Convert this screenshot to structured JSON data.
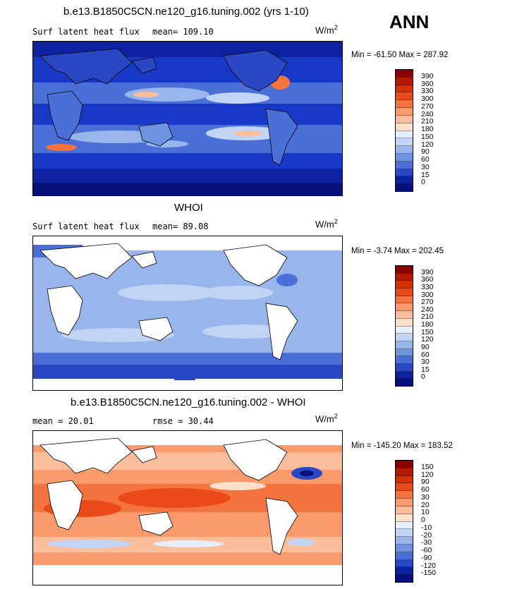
{
  "season": "ANN",
  "panels": [
    {
      "title": "b.e13.B1850C5CN.ne120_g16.tuning.002 (yrs 1-10)",
      "left_label": "Surf latent heat flux",
      "mid_label": "mean= 109.10",
      "units_base": "W/m",
      "units_exp": "2",
      "minmax": "Min = -61.50 Max = 287.92",
      "colorbar_labels": [
        "390",
        "360",
        "330",
        "300",
        "270",
        "240",
        "210",
        "180",
        "150",
        "120",
        "90",
        "60",
        "30",
        "15",
        "0"
      ],
      "colorbar_colors": [
        "#8b0000",
        "#b51a00",
        "#d43000",
        "#ea4a1a",
        "#f4743f",
        "#f89a6c",
        "#fbbe9c",
        "#fde0cc",
        "#e6eefb",
        "#c2d4f5",
        "#98b6ec",
        "#6e93e0",
        "#4a6fd6",
        "#2a48c4",
        "#0d22a0",
        "#05107a"
      ]
    },
    {
      "title": "WHOI",
      "left_label": "Surf latent heat flux",
      "mid_label": "mean=  89.08",
      "units_base": "W/m",
      "units_exp": "2",
      "minmax": "Min =  -3.74 Max = 202.45",
      "colorbar_labels": [
        "390",
        "360",
        "330",
        "300",
        "270",
        "240",
        "210",
        "180",
        "150",
        "120",
        "90",
        "60",
        "30",
        "15",
        "0"
      ],
      "colorbar_colors": [
        "#8b0000",
        "#b51a00",
        "#d43000",
        "#ea4a1a",
        "#f4743f",
        "#f89a6c",
        "#fbbe9c",
        "#fde0cc",
        "#e6eefb",
        "#c2d4f5",
        "#98b6ec",
        "#6e93e0",
        "#4a6fd6",
        "#2a48c4",
        "#0d22a0",
        "#05107a"
      ]
    },
    {
      "title": "b.e13.B1850C5CN.ne120_g16.tuning.002 - WHOI",
      "left_label": "mean =  20.01",
      "mid_label": "rmse =  30.44",
      "units_base": "W/m",
      "units_exp": "2",
      "minmax": "Min = -145.20 Max = 183.52",
      "colorbar_labels": [
        "150",
        "120",
        "90",
        "60",
        "30",
        "20",
        "10",
        "0",
        "-10",
        "-20",
        "-30",
        "-60",
        "-90",
        "-120",
        "-150"
      ],
      "colorbar_colors": [
        "#8b0000",
        "#b51a00",
        "#d43000",
        "#ea4a1a",
        "#f4743f",
        "#f89a6c",
        "#fbbe9c",
        "#fde0cc",
        "#e6eefb",
        "#c2d4f5",
        "#98b6ec",
        "#6e93e0",
        "#4a6fd6",
        "#2a48c4",
        "#0d22a0",
        "#05107a"
      ]
    }
  ]
}
